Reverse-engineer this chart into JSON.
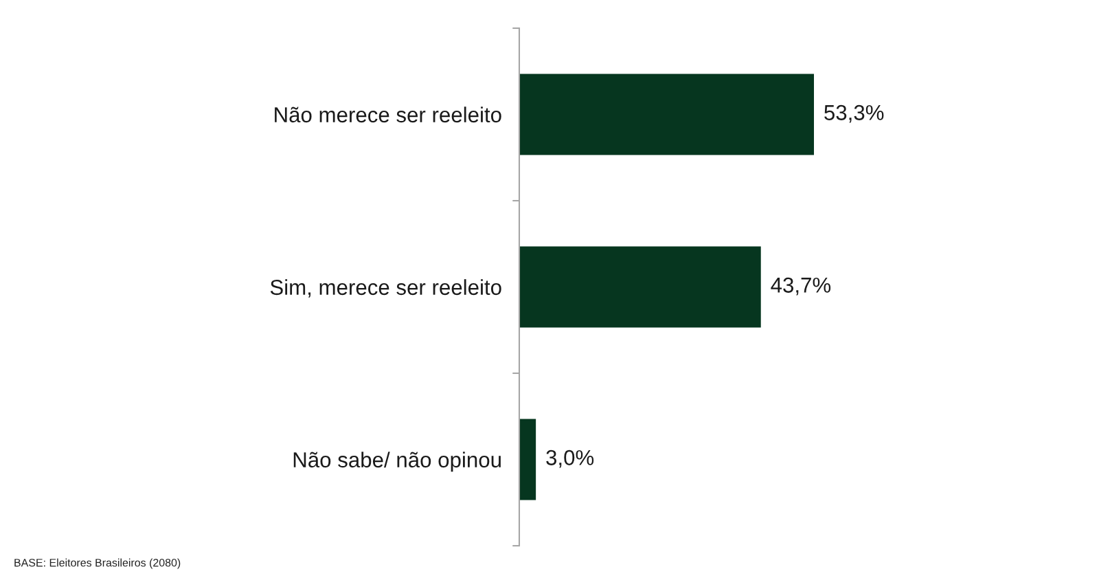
{
  "chart_data": {
    "type": "bar",
    "orientation": "horizontal",
    "categories": [
      "Não merece ser reeleito",
      "Sim, merece ser reeleito",
      "Não sabe/ não opinou"
    ],
    "values": [
      53.3,
      43.7,
      3.0
    ],
    "value_labels": [
      "53,3%",
      "43,7%",
      "3,0%"
    ],
    "color": "#06361f",
    "annotations": [
      "BASE: Eleitores Brasileiros (2080)"
    ]
  }
}
